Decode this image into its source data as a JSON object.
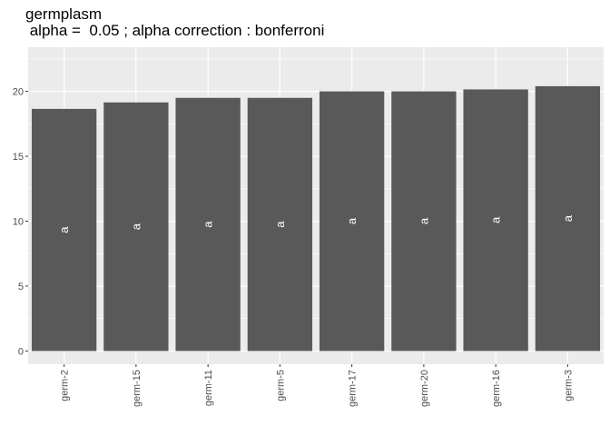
{
  "chart_data": {
    "type": "bar",
    "title": "germplasm",
    "subtitle": " alpha =  0.05 ; alpha correction : bonferroni",
    "xlabel": "",
    "ylabel": "",
    "categories": [
      "germ-2",
      "germ-15",
      "germ-11",
      "germ-5",
      "germ-17",
      "germ-20",
      "germ-16",
      "germ-3"
    ],
    "values": [
      18.65,
      19.15,
      19.5,
      19.5,
      20.0,
      20.0,
      20.15,
      20.4
    ],
    "group_labels": [
      "a",
      "a",
      "a",
      "a",
      "a",
      "a",
      "a",
      "a"
    ],
    "yticks": [
      0,
      5,
      10,
      15,
      20
    ],
    "ylim": [
      -1.02,
      23.4
    ],
    "grid": true,
    "colors": {
      "panel": "#ebebeb",
      "grid_major": "#ffffff",
      "bar": "#595959",
      "label": "#ffffff",
      "tick_text": "#4d4d4d"
    }
  }
}
